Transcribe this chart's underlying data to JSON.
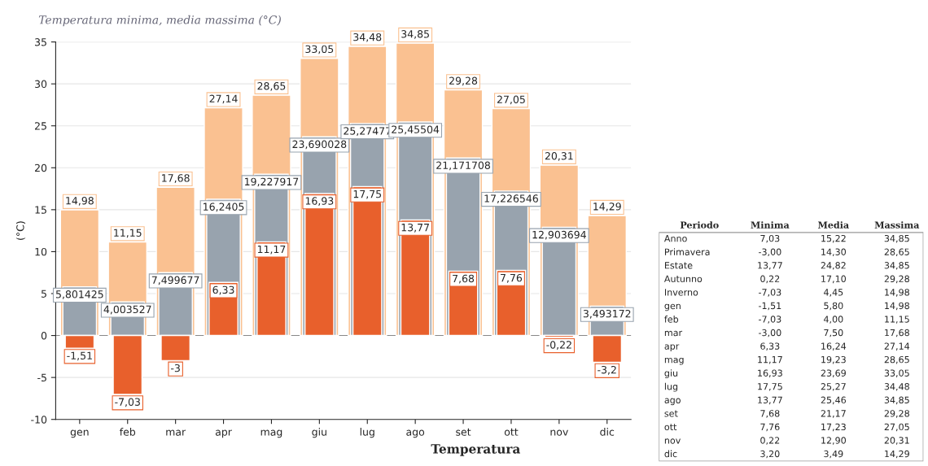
{
  "chart_data": [
    {
      "type": "bar",
      "title": "Temperatura minima, media massima (°C)",
      "ylabel": "(°C)",
      "categories": [
        "gen",
        "feb",
        "mar",
        "apr",
        "mag",
        "giu",
        "lug",
        "ago",
        "set",
        "ott",
        "nov",
        "dic"
      ],
      "series": [
        {
          "color": "#fac191",
          "values": [
            14.98,
            11.15,
            17.68,
            27.14,
            28.65,
            33.05,
            34.48,
            34.85,
            29.28,
            27.05,
            20.31,
            14.29
          ],
          "value_labels": [
            "14,98",
            "11,15",
            "17,68",
            "27,14",
            "28,65",
            "33,05",
            "34,48",
            "34,85",
            "29,28",
            "27,05",
            "20,31",
            "14,29"
          ]
        },
        {
          "color": "#98a3ae",
          "values": [
            5.801425,
            4.003527,
            7.499677,
            16.2405,
            19.227917,
            23.690028,
            25.27477,
            25.45504,
            21.171708,
            17.226546,
            12.903694,
            3.493172
          ],
          "value_labels": [
            "5,801425",
            "4,003527",
            "7,499677",
            "16,2405",
            "19,227917",
            "23,690028",
            "25,27477",
            "25,45504",
            "21,171708",
            "17,226546",
            "12,903694",
            "3,493172"
          ]
        },
        {
          "color": "#e8602c",
          "values": [
            -1.51,
            -7.03,
            -3,
            6.33,
            11.17,
            16.93,
            17.75,
            13.77,
            7.68,
            7.76,
            -0.22,
            -3.2
          ],
          "value_labels": [
            "-1,51",
            "-7,03",
            "-3",
            "6,33",
            "11,17",
            "16,93",
            "17,75",
            "13,77",
            "7,68",
            "7,76",
            "-0,22",
            "-3,2"
          ]
        }
      ],
      "ylim": [
        -10,
        35
      ],
      "yticks": [
        -10,
        -5,
        0,
        5,
        10,
        15,
        20,
        25,
        30,
        35
      ],
      "grid": "y",
      "annotations": [
        "Temperatura"
      ]
    },
    {
      "type": "other",
      "categories": [
        "Periodo",
        "Minima",
        "Media",
        "Massima"
      ],
      "y_categories": [
        "Anno",
        "Primavera",
        "Estate",
        "Autunno",
        "Inverno",
        "gen",
        "feb",
        "mar",
        "apr",
        "mag",
        "giu",
        "lug",
        "ago",
        "set",
        "ott",
        "nov",
        "dic"
      ],
      "cell_labels": [
        [
          "7,03",
          "15,22",
          "34,85"
        ],
        [
          "-3,00",
          "14,30",
          "28,65"
        ],
        [
          "13,77",
          "24,82",
          "34,85"
        ],
        [
          "0,22",
          "17,10",
          "29,28"
        ],
        [
          "-7,03",
          "4,45",
          "14,98"
        ],
        [
          "-1,51",
          "5,80",
          "14,98"
        ],
        [
          "-7,03",
          "4,00",
          "11,15"
        ],
        [
          "-3,00",
          "7,50",
          "17,68"
        ],
        [
          "6,33",
          "16,24",
          "27,14"
        ],
        [
          "11,17",
          "19,23",
          "28,65"
        ],
        [
          "16,93",
          "23,69",
          "33,05"
        ],
        [
          "17,75",
          "25,27",
          "34,48"
        ],
        [
          "13,77",
          "25,46",
          "34,85"
        ],
        [
          "7,68",
          "21,17",
          "29,28"
        ],
        [
          "7,76",
          "17,23",
          "27,05"
        ],
        [
          "0,22",
          "12,90",
          "20,31"
        ],
        [
          "3,20",
          "3,49",
          "14,29"
        ]
      ]
    }
  ]
}
